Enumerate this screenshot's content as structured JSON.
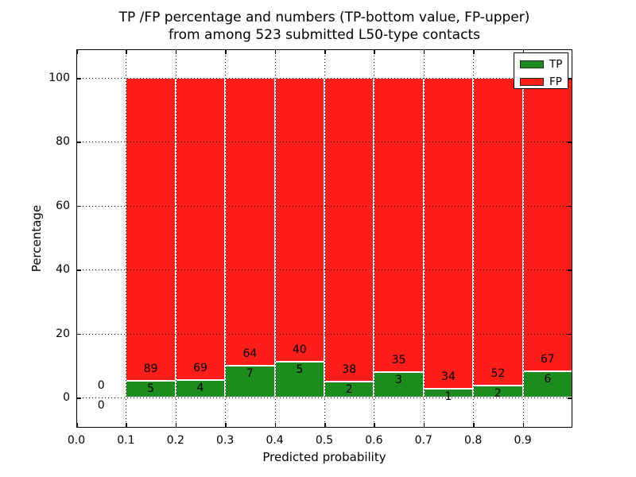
{
  "title": {
    "line1": "TP /FP percentage and numbers (TP-bottom value, FP-upper)",
    "line2": "from among 523 submitted L50-type contacts"
  },
  "axes": {
    "xlabel": "Predicted probability",
    "ylabel": "Percentage",
    "x_ticks": [
      {
        "value": 0.0,
        "label": "0.0"
      },
      {
        "value": 0.1,
        "label": "0.1"
      },
      {
        "value": 0.2,
        "label": "0.2"
      },
      {
        "value": 0.3,
        "label": "0.3"
      },
      {
        "value": 0.4,
        "label": "0.4"
      },
      {
        "value": 0.5,
        "label": "0.5"
      },
      {
        "value": 0.6,
        "label": "0.6"
      },
      {
        "value": 0.7,
        "label": "0.7"
      },
      {
        "value": 0.8,
        "label": "0.8"
      },
      {
        "value": 0.9,
        "label": "0.9"
      }
    ],
    "y_ticks": [
      {
        "value": 0,
        "label": "0"
      },
      {
        "value": 20,
        "label": "20"
      },
      {
        "value": 40,
        "label": "40"
      },
      {
        "value": 60,
        "label": "60"
      },
      {
        "value": 80,
        "label": "80"
      },
      {
        "value": 100,
        "label": "100"
      }
    ]
  },
  "legend": {
    "items": [
      {
        "label": "TP",
        "color_key": "tp"
      },
      {
        "label": "FP",
        "color_key": "fp"
      }
    ]
  },
  "chart_data": {
    "type": "bar",
    "stacked": true,
    "normalized_to_100_percent": true,
    "total_submitted_contacts": 523,
    "title": "TP /FP percentage and numbers (TP-bottom value, FP-upper) from among 523 submitted L50-type contacts",
    "xlabel": "Predicted probability",
    "ylabel": "Percentage",
    "xlim": [
      0.0,
      1.0
    ],
    "ylim": [
      -9.45,
      108.96
    ],
    "grid": "dotted-both-axes",
    "legend_position": "upper-right",
    "series_names": [
      "TP",
      "FP"
    ],
    "x_bins": [
      {
        "x_start": 0.0,
        "x_end": 0.1,
        "tp": 0,
        "fp": 0
      },
      {
        "x_start": 0.1,
        "x_end": 0.2,
        "tp": 5,
        "fp": 89
      },
      {
        "x_start": 0.2,
        "x_end": 0.3,
        "tp": 4,
        "fp": 69
      },
      {
        "x_start": 0.3,
        "x_end": 0.4,
        "tp": 7,
        "fp": 64
      },
      {
        "x_start": 0.4,
        "x_end": 0.5,
        "tp": 5,
        "fp": 40
      },
      {
        "x_start": 0.5,
        "x_end": 0.6,
        "tp": 2,
        "fp": 38
      },
      {
        "x_start": 0.6,
        "x_end": 0.7,
        "tp": 3,
        "fp": 35
      },
      {
        "x_start": 0.7,
        "x_end": 0.8,
        "tp": 1,
        "fp": 34
      },
      {
        "x_start": 0.8,
        "x_end": 0.9,
        "tp": 2,
        "fp": 52
      },
      {
        "x_start": 0.9,
        "x_end": 1.0,
        "tp": 6,
        "fp": 67
      }
    ]
  },
  "colors": {
    "tp": "#1e8b1e",
    "fp": "#fd1e19",
    "grid": "#000000",
    "frame": "#000000",
    "background": "#ffffff",
    "text": "#000000"
  }
}
